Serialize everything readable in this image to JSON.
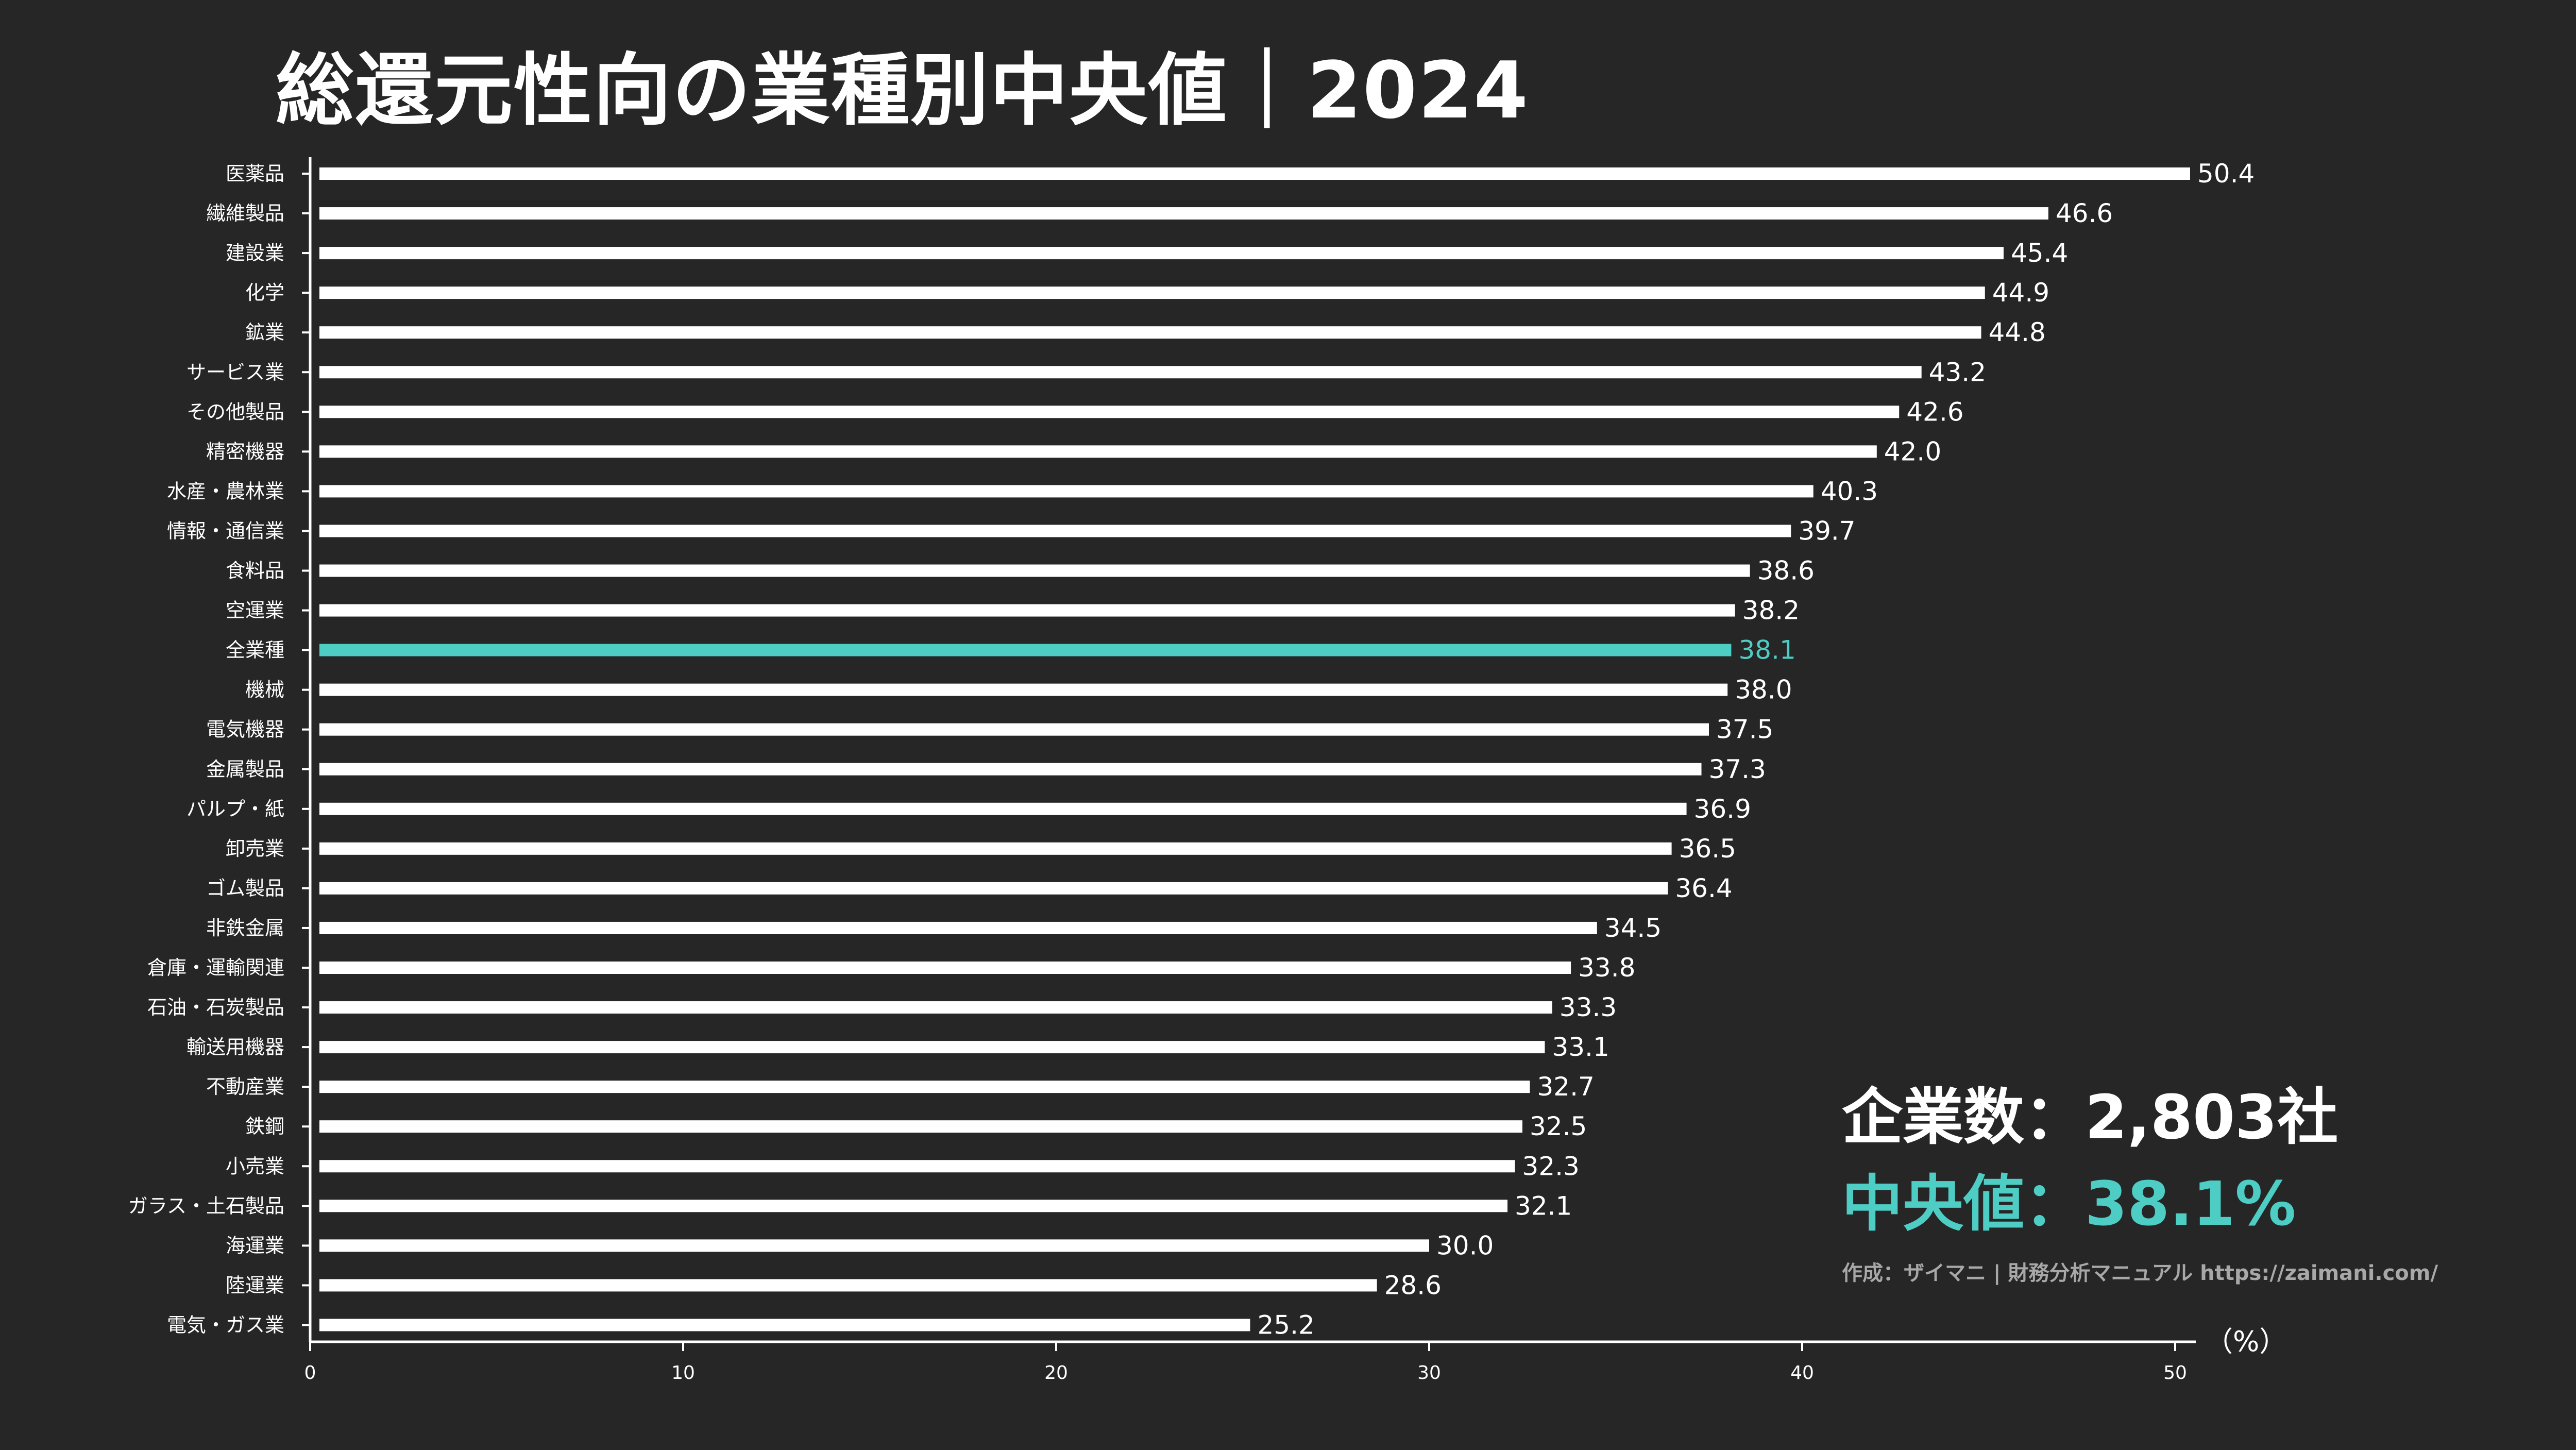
{
  "title": "総還元性向の業種別中央値｜2024",
  "stats": {
    "companies": "企業数：2,803社",
    "median": "中央値：38.1%"
  },
  "credit": "作成：ザイマニ | 財務分析マニュアル https://zaimani.com/",
  "colors": {
    "bar": "#ffffff",
    "highlight": "#4ecdc4",
    "background": "#262626",
    "credit": "#a8a8a8"
  },
  "chart_data": {
    "type": "bar",
    "orientation": "horizontal",
    "categories": [
      "医薬品",
      "繊維製品",
      "建設業",
      "化学",
      "鉱業",
      "サービス業",
      "その他製品",
      "精密機器",
      "水産・農林業",
      "情報・通信業",
      "食料品",
      "空運業",
      "全業種",
      "機械",
      "電気機器",
      "金属製品",
      "パルプ・紙",
      "卸売業",
      "ゴム製品",
      "非鉄金属",
      "倉庫・運輸関連",
      "石油・石炭製品",
      "輸送用機器",
      "不動産業",
      "鉄鋼",
      "小売業",
      "ガラス・土石製品",
      "海運業",
      "陸運業",
      "電気・ガス業"
    ],
    "values": [
      50.4,
      46.6,
      45.4,
      44.9,
      44.8,
      43.2,
      42.6,
      42.0,
      40.3,
      39.7,
      38.6,
      38.2,
      38.1,
      38.0,
      37.5,
      37.3,
      36.9,
      36.5,
      36.4,
      34.5,
      33.8,
      33.3,
      33.1,
      32.7,
      32.5,
      32.3,
      32.1,
      30.0,
      28.6,
      25.2
    ],
    "value_labels": [
      "50.4",
      "46.6",
      "45.4",
      "44.9",
      "44.8",
      "43.2",
      "42.6",
      "42.0",
      "40.3",
      "39.7",
      "38.6",
      "38.2",
      "38.1",
      "38.0",
      "37.5",
      "37.3",
      "36.9",
      "36.5",
      "36.4",
      "34.5",
      "33.8",
      "33.3",
      "33.1",
      "32.7",
      "32.5",
      "32.3",
      "32.1",
      "30.0",
      "28.6",
      "25.2"
    ],
    "highlight_category": "全業種",
    "xlim": [
      0,
      50
    ],
    "xticks": [
      "0",
      "10",
      "20",
      "30",
      "40",
      "50"
    ],
    "xunit": "（%）",
    "grid": false
  }
}
